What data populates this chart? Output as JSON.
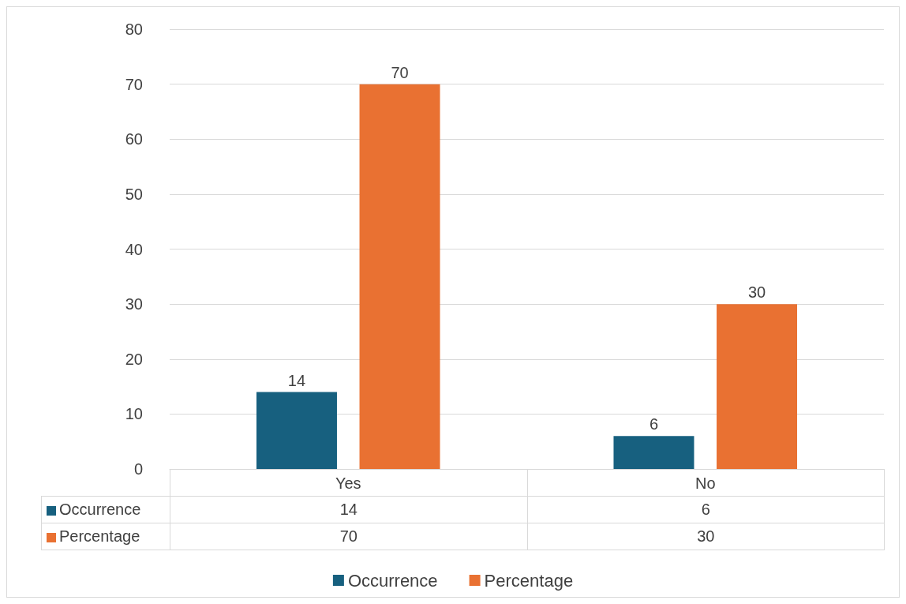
{
  "chart_data": {
    "type": "bar",
    "categories": [
      "Yes",
      "No"
    ],
    "series": [
      {
        "name": "Occurrence",
        "color": "#17607f",
        "values": [
          14,
          6
        ]
      },
      {
        "name": "Percentage",
        "color": "#e97132",
        "values": [
          70,
          30
        ]
      }
    ],
    "annotations": [
      "14",
      "6",
      "70",
      "30"
    ],
    "ylim": [
      0,
      80
    ],
    "yticks": [
      0,
      10,
      20,
      30,
      40,
      50,
      60,
      70,
      80
    ],
    "grid": "y",
    "legend": "bottom",
    "data_labels": true
  }
}
